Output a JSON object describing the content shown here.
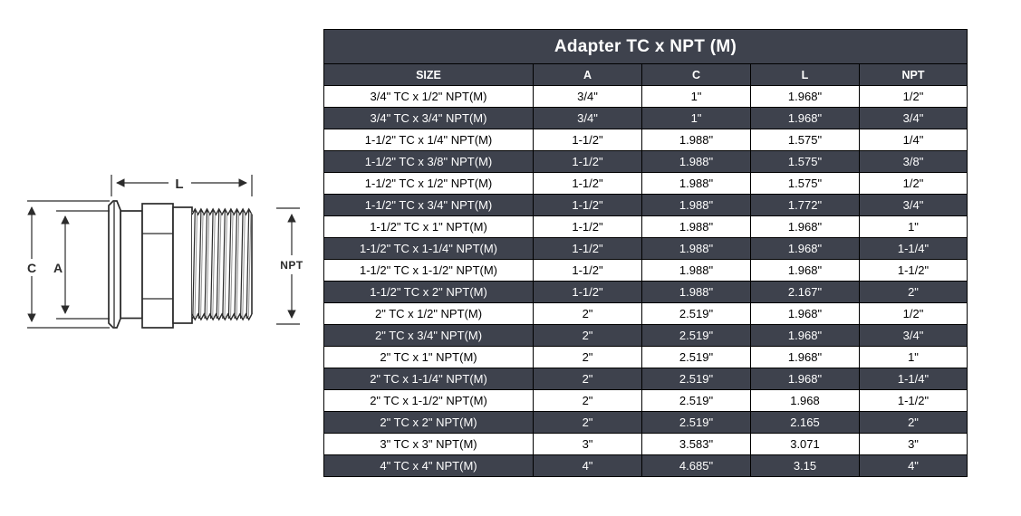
{
  "diagram": {
    "labels": {
      "length": "L",
      "flange_od": "C",
      "tube_od": "A",
      "thread": "NPT"
    }
  },
  "table": {
    "title": "Adapter TC x NPT (M)",
    "columns": [
      "SIZE",
      "A",
      "C",
      "L",
      "NPT"
    ],
    "rows": [
      [
        "3/4\" TC x 1/2\" NPT(M)",
        "3/4\"",
        "1\"",
        "1.968\"",
        "1/2\""
      ],
      [
        "3/4\" TC x 3/4\" NPT(M)",
        "3/4\"",
        "1\"",
        "1.968\"",
        "3/4\""
      ],
      [
        "1-1/2\" TC x 1/4\" NPT(M)",
        "1-1/2\"",
        "1.988\"",
        "1.575\"",
        "1/4\""
      ],
      [
        "1-1/2\" TC x 3/8\" NPT(M)",
        "1-1/2\"",
        "1.988\"",
        "1.575\"",
        "3/8\""
      ],
      [
        "1-1/2\" TC x 1/2\" NPT(M)",
        "1-1/2\"",
        "1.988\"",
        "1.575\"",
        "1/2\""
      ],
      [
        "1-1/2\" TC x 3/4\" NPT(M)",
        "1-1/2\"",
        "1.988\"",
        "1.772\"",
        "3/4\""
      ],
      [
        "1-1/2\" TC x 1\" NPT(M)",
        "1-1/2\"",
        "1.988\"",
        "1.968\"",
        "1\""
      ],
      [
        "1-1/2\" TC x 1-1/4\" NPT(M)",
        "1-1/2\"",
        "1.988\"",
        "1.968\"",
        "1-1/4\""
      ],
      [
        "1-1/2\" TC x 1-1/2\" NPT(M)",
        "1-1/2\"",
        "1.988\"",
        "1.968\"",
        "1-1/2\""
      ],
      [
        "1-1/2\" TC x 2\" NPT(M)",
        "1-1/2\"",
        "1.988\"",
        "2.167\"",
        "2\""
      ],
      [
        "2\" TC x 1/2\" NPT(M)",
        "2\"",
        "2.519\"",
        "1.968\"",
        "1/2\""
      ],
      [
        "2\" TC x 3/4\" NPT(M)",
        "2\"",
        "2.519\"",
        "1.968\"",
        "3/4\""
      ],
      [
        "2\" TC x 1\" NPT(M)",
        "2\"",
        "2.519\"",
        "1.968\"",
        "1\""
      ],
      [
        "2\" TC x 1-1/4\" NPT(M)",
        "2\"",
        "2.519\"",
        "1.968\"",
        "1-1/4\""
      ],
      [
        "2\" TC x 1-1/2\" NPT(M)",
        "2\"",
        "2.519\"",
        "1.968",
        "1-1/2\""
      ],
      [
        "2\" TC x 2\" NPT(M)",
        "2\"",
        "2.519\"",
        "2.165",
        "2\""
      ],
      [
        "3\" TC x 3\" NPT(M)",
        "3\"",
        "3.583\"",
        "3.071",
        "3\""
      ],
      [
        "4\" TC x 4\" NPT(M)",
        "4\"",
        "4.685\"",
        "3.15",
        "4\""
      ]
    ],
    "colors": {
      "dark_row_bg": "#3E424D",
      "light_row_bg": "#FFFFFF",
      "border": "#000000",
      "dark_row_text": "#FFFFFF",
      "light_row_text": "#000000"
    }
  }
}
